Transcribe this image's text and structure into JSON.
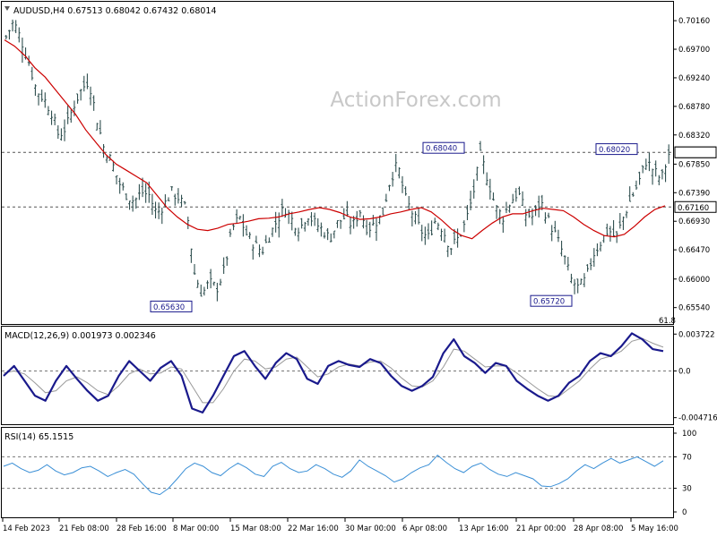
{
  "watermark": "ActionForex.com",
  "colors": {
    "background": "#ffffff",
    "frame": "#000000",
    "price_bars": "#2f4f4f",
    "moving_average": "#cc0000",
    "macd_line": "#1a1a8c",
    "macd_signal": "#999999",
    "rsi_line": "#3a8fd6",
    "level_line": "#555555"
  },
  "chart_data": [
    {
      "type": "bar",
      "title": "AUDUSD,H4  0.67513 0.68042 0.67432 0.68014",
      "ylim": [
        0.6542,
        0.7032
      ],
      "y_ticks": [
        "0.70160",
        "0.69700",
        "0.69240",
        "0.68780",
        "0.68320",
        "0.67850",
        "0.67390",
        "0.66930",
        "0.66470",
        "0.66000",
        "0.65540"
      ],
      "current_price_label": "0.68040",
      "horizontal_levels": [
        {
          "value": 0.6804,
          "label": "0.68040"
        },
        {
          "value": 0.6716,
          "label": "0.67160"
        }
      ],
      "annotations": [
        {
          "text": "0.65630",
          "price": 0.6563
        },
        {
          "text": "0.68040",
          "price": 0.6804
        },
        {
          "text": "0.65720",
          "price": 0.6572
        },
        {
          "text": "0.68020",
          "price": 0.6802
        }
      ],
      "fib_label": "61.8",
      "close_path": [
        0.699,
        0.7015,
        0.6985,
        0.695,
        0.6905,
        0.689,
        0.687,
        0.683,
        0.6845,
        0.688,
        0.6905,
        0.692,
        0.686,
        0.681,
        0.679,
        0.6755,
        0.6735,
        0.6725,
        0.674,
        0.6735,
        0.6705,
        0.672,
        0.674,
        0.673,
        0.671,
        0.661,
        0.6575,
        0.6595,
        0.6585,
        0.6615,
        0.668,
        0.67,
        0.667,
        0.6655,
        0.6645,
        0.667,
        0.6695,
        0.6715,
        0.6695,
        0.668,
        0.6705,
        0.669,
        0.668,
        0.6665,
        0.669,
        0.67,
        0.6685,
        0.671,
        0.668,
        0.669,
        0.6705,
        0.676,
        0.6785,
        0.673,
        0.6705,
        0.668,
        0.6665,
        0.6695,
        0.668,
        0.665,
        0.6665,
        0.669,
        0.6735,
        0.68,
        0.676,
        0.6715,
        0.67,
        0.6725,
        0.674,
        0.6705,
        0.67,
        0.6725,
        0.6695,
        0.667,
        0.664,
        0.66,
        0.6585,
        0.66,
        0.664,
        0.666,
        0.668,
        0.6665,
        0.67,
        0.673,
        0.6755,
        0.679,
        0.6775,
        0.676,
        0.6801
      ],
      "ma_path": [
        0.6985,
        0.6975,
        0.696,
        0.694,
        0.6925,
        0.6905,
        0.6885,
        0.6865,
        0.684,
        0.682,
        0.68,
        0.6785,
        0.6775,
        0.6765,
        0.6755,
        0.6735,
        0.6715,
        0.67,
        0.6688,
        0.668,
        0.6678,
        0.6682,
        0.6688,
        0.669,
        0.6693,
        0.6697,
        0.6698,
        0.67,
        0.6705,
        0.6708,
        0.6712,
        0.6715,
        0.6712,
        0.6707,
        0.67,
        0.6696,
        0.6697,
        0.67,
        0.6705,
        0.6708,
        0.6712,
        0.6715,
        0.6708,
        0.6695,
        0.668,
        0.667,
        0.6665,
        0.6678,
        0.669,
        0.67,
        0.6705,
        0.6705,
        0.671,
        0.6714,
        0.6712,
        0.671,
        0.67,
        0.6688,
        0.6678,
        0.667,
        0.6668,
        0.6672,
        0.6685,
        0.67,
        0.6712,
        0.6718
      ]
    },
    {
      "type": "line",
      "title": "MACD(12,26,9) 0.001973 0.002346",
      "ylim": [
        -0.0052,
        0.0042
      ],
      "y_ticks": [
        "0.003722",
        "0.0",
        "-0.004716"
      ],
      "series": [
        {
          "values": [
            -0.0005,
            0.0005,
            -0.001,
            -0.0025,
            -0.003,
            -0.001,
            0.0005,
            -0.0008,
            -0.002,
            -0.003,
            -0.0025,
            -0.0005,
            0.001,
            0.0,
            -0.001,
            0.0003,
            0.001,
            -0.0005,
            -0.0038,
            -0.0042,
            -0.0025,
            -0.0005,
            0.0015,
            0.002,
            0.0005,
            -0.0008,
            0.0008,
            0.0018,
            0.0012,
            -0.0008,
            -0.0013,
            0.0005,
            0.001,
            0.0006,
            0.0004,
            0.0012,
            0.0008,
            -0.0005,
            -0.0015,
            -0.002,
            -0.0015,
            -0.0006,
            0.0018,
            0.0032,
            0.0015,
            0.0008,
            -0.0002,
            0.0008,
            0.0005,
            -0.001,
            -0.0018,
            -0.0025,
            -0.003,
            -0.0025,
            -0.0012,
            -0.0005,
            0.001,
            0.0018,
            0.0015,
            0.0025,
            0.0038,
            0.0032,
            0.0022,
            0.002
          ]
        },
        {
          "values": [
            -0.0002,
            0.0,
            -0.0003,
            -0.0012,
            -0.0022,
            -0.002,
            -0.001,
            -0.0006,
            -0.0012,
            -0.002,
            -0.0024,
            -0.0015,
            -0.0003,
            0.0002,
            -0.0003,
            -0.0002,
            0.0004,
            0.0002,
            -0.0015,
            -0.0032,
            -0.0032,
            -0.0018,
            0.0,
            0.0012,
            0.001,
            0.0002,
            0.0004,
            0.0012,
            0.0014,
            0.0004,
            -0.0006,
            -0.0003,
            0.0004,
            0.0007,
            0.0005,
            0.0009,
            0.001,
            0.0003,
            -0.0007,
            -0.0015,
            -0.0016,
            -0.001,
            0.0004,
            0.0022,
            0.002,
            0.0012,
            0.0004,
            0.0005,
            0.0005,
            -0.0002,
            -0.001,
            -0.0018,
            -0.0025,
            -0.0026,
            -0.0018,
            -0.001,
            0.0002,
            0.0012,
            0.0015,
            0.002,
            0.003,
            0.0033,
            0.0028,
            0.0024
          ]
        }
      ]
    },
    {
      "type": "line",
      "title": "RSI(14) 65.1515",
      "ylim": [
        0,
        100
      ],
      "y_ticks": [
        "100",
        "70",
        "30",
        "0"
      ],
      "series": [
        {
          "values": [
            58,
            62,
            55,
            50,
            53,
            60,
            52,
            47,
            50,
            56,
            58,
            52,
            45,
            50,
            54,
            48,
            36,
            25,
            22,
            30,
            42,
            55,
            62,
            58,
            50,
            46,
            55,
            62,
            56,
            48,
            45,
            58,
            63,
            55,
            50,
            52,
            60,
            55,
            48,
            44,
            52,
            66,
            58,
            52,
            46,
            38,
            42,
            50,
            56,
            60,
            72,
            63,
            55,
            50,
            58,
            62,
            54,
            48,
            45,
            50,
            46,
            42,
            33,
            32,
            36,
            42,
            52,
            60,
            55,
            62,
            68,
            62,
            66,
            70,
            64,
            58,
            65
          ]
        }
      ]
    }
  ],
  "x_axis_labels": [
    "14 Feb 2023",
    "21 Feb 08:00",
    "28 Feb 16:00",
    "8 Mar 00:00",
    "15 Mar 08:00",
    "22 Mar 16:00",
    "30 Mar 00:00",
    "6 Apr 08:00",
    "13 Apr 16:00",
    "21 Apr 00:00",
    "28 Apr 08:00",
    "5 May 16:00"
  ]
}
